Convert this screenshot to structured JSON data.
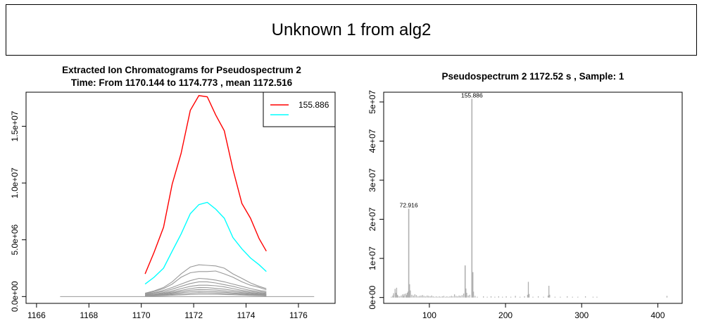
{
  "page_title": "Unknown 1 from alg2",
  "chart_data": [
    {
      "type": "line",
      "title": "Extracted Ion Chromatograms for  Pseudospectrum 2",
      "subtitle": "Time: From 1170.144 to 1174.773 , mean 1172.516",
      "xlabel": "",
      "ylabel": "",
      "xlim": [
        1165.6,
        1177.4
      ],
      "ylim": [
        -600000,
        18000000
      ],
      "x_ticks": [
        "1166",
        "1168",
        "1170",
        "1172",
        "1174",
        "1176"
      ],
      "y_ticks": [
        "0.0e+00",
        "5.0e+06",
        "1.0e+07",
        "1.5e+07"
      ],
      "legend": {
        "position": "top-right",
        "entries": [
          {
            "label": "155.886",
            "color": "#ff0000"
          },
          {
            "label": "",
            "color": "#00ffff"
          }
        ]
      },
      "x": [
        1170.144,
        1170.49,
        1170.85,
        1171.18,
        1171.52,
        1171.87,
        1172.2,
        1172.52,
        1172.84,
        1173.17,
        1173.5,
        1173.84,
        1174.17,
        1174.5,
        1174.773
      ],
      "series": [
        {
          "name": "155.886",
          "color": "#ff0000",
          "values": [
            2000000,
            3900000,
            6100000,
            9900000,
            12600000,
            16400000,
            17700000,
            17600000,
            16000000,
            14600000,
            11200000,
            8200000,
            6900000,
            5100000,
            4000000
          ]
        },
        {
          "name": "",
          "color": "#00ffff",
          "values": [
            1100000,
            1700000,
            2500000,
            4000000,
            5500000,
            7300000,
            8100000,
            8300000,
            7700000,
            6900000,
            5200000,
            4200000,
            3400000,
            2800000,
            2200000
          ]
        },
        {
          "color": "#999999",
          "values": [
            300000,
            500000,
            800000,
            1300000,
            2000000,
            2600000,
            2800000,
            2750000,
            2700000,
            2500000,
            2000000,
            1600000,
            1200000,
            900000,
            700000
          ]
        },
        {
          "color": "#999999",
          "values": [
            250000,
            450000,
            700000,
            1100000,
            1700000,
            2100000,
            2200000,
            2200000,
            2250000,
            2000000,
            1700000,
            1300000,
            1000000,
            800000,
            600000
          ]
        },
        {
          "color": "#999999",
          "values": [
            200000,
            350000,
            550000,
            800000,
            1100000,
            1400000,
            1600000,
            1550000,
            1450000,
            1300000,
            1100000,
            900000,
            700000,
            550000,
            450000
          ]
        },
        {
          "color": "#999999",
          "values": [
            150000,
            300000,
            450000,
            650000,
            900000,
            1150000,
            1300000,
            1300000,
            1200000,
            1050000,
            900000,
            700000,
            550000,
            450000,
            350000
          ]
        },
        {
          "color": "#999999",
          "values": [
            120000,
            220000,
            350000,
            500000,
            700000,
            900000,
            1000000,
            1000000,
            950000,
            850000,
            700000,
            550000,
            450000,
            350000,
            280000
          ]
        },
        {
          "color": "#999999",
          "values": [
            100000,
            180000,
            280000,
            400000,
            550000,
            700000,
            800000,
            780000,
            720000,
            650000,
            550000,
            450000,
            350000,
            280000,
            220000
          ]
        },
        {
          "color": "#999999",
          "values": [
            80000,
            140000,
            220000,
            320000,
            440000,
            560000,
            620000,
            610000,
            570000,
            500000,
            430000,
            350000,
            280000,
            220000,
            180000
          ]
        },
        {
          "color": "#999999",
          "values": [
            60000,
            110000,
            170000,
            250000,
            340000,
            420000,
            470000,
            460000,
            430000,
            380000,
            320000,
            260000,
            210000,
            170000,
            140000
          ]
        },
        {
          "color": "#999999",
          "values": [
            40000,
            80000,
            120000,
            180000,
            240000,
            300000,
            340000,
            330000,
            310000,
            280000,
            240000,
            200000,
            160000,
            130000,
            100000
          ]
        },
        {
          "color": "#999999",
          "values": [
            30000,
            50000,
            80000,
            110000,
            150000,
            190000,
            210000,
            210000,
            200000,
            180000,
            160000,
            130000,
            100000,
            80000,
            60000
          ]
        }
      ],
      "baseline": {
        "color": "#999999",
        "x": [
          1166.9,
          1176.6
        ],
        "value": 0
      }
    },
    {
      "type": "bar",
      "title": "Pseudospectrum 2 1172.52 s , Sample: 1",
      "xlabel": "",
      "ylabel": "",
      "xlim": [
        40,
        432
      ],
      "ylim": [
        -1500000,
        52500000
      ],
      "x_ticks": [
        "100",
        "200",
        "300",
        "400"
      ],
      "y_ticks": [
        "0e+00",
        "1e+07",
        "2e+07",
        "3e+07",
        "4e+07",
        "5e+07"
      ],
      "color": "#b0b0b0",
      "annotations": [
        {
          "label": "72.916",
          "x": 72.916,
          "y": 22700000
        },
        {
          "label": "155.886",
          "x": 155.886,
          "y": 50800000
        }
      ],
      "peaks": [
        {
          "x": 50,
          "y": 200000
        },
        {
          "x": 52,
          "y": 500000
        },
        {
          "x": 53,
          "y": 1100000
        },
        {
          "x": 55,
          "y": 2200000
        },
        {
          "x": 56,
          "y": 1200000
        },
        {
          "x": 57,
          "y": 2500000
        },
        {
          "x": 58,
          "y": 700000
        },
        {
          "x": 59,
          "y": 400000
        },
        {
          "x": 61,
          "y": 300000
        },
        {
          "x": 63,
          "y": 500000
        },
        {
          "x": 65,
          "y": 800000
        },
        {
          "x": 66,
          "y": 400000
        },
        {
          "x": 67,
          "y": 900000
        },
        {
          "x": 69,
          "y": 1000000
        },
        {
          "x": 70,
          "y": 600000
        },
        {
          "x": 71,
          "y": 1200000
        },
        {
          "x": 72,
          "y": 1500000
        },
        {
          "x": 72.916,
          "y": 22700000
        },
        {
          "x": 74,
          "y": 3400000
        },
        {
          "x": 75,
          "y": 1800000
        },
        {
          "x": 77,
          "y": 700000
        },
        {
          "x": 79,
          "y": 500000
        },
        {
          "x": 81,
          "y": 800000
        },
        {
          "x": 83,
          "y": 600000
        },
        {
          "x": 85,
          "y": 300000
        },
        {
          "x": 87,
          "y": 400000
        },
        {
          "x": 89,
          "y": 500000
        },
        {
          "x": 91,
          "y": 600000
        },
        {
          "x": 93,
          "y": 400000
        },
        {
          "x": 95,
          "y": 300000
        },
        {
          "x": 97,
          "y": 500000
        },
        {
          "x": 99,
          "y": 400000
        },
        {
          "x": 101,
          "y": 300000
        },
        {
          "x": 103,
          "y": 500000
        },
        {
          "x": 105,
          "y": 300000
        },
        {
          "x": 107,
          "y": 200000
        },
        {
          "x": 109,
          "y": 300000
        },
        {
          "x": 111,
          "y": 200000
        },
        {
          "x": 113,
          "y": 300000
        },
        {
          "x": 115,
          "y": 200000
        },
        {
          "x": 117,
          "y": 300000
        },
        {
          "x": 119,
          "y": 400000
        },
        {
          "x": 121,
          "y": 200000
        },
        {
          "x": 123,
          "y": 300000
        },
        {
          "x": 125,
          "y": 200000
        },
        {
          "x": 127,
          "y": 300000
        },
        {
          "x": 129,
          "y": 400000
        },
        {
          "x": 131,
          "y": 300000
        },
        {
          "x": 133,
          "y": 800000
        },
        {
          "x": 135,
          "y": 400000
        },
        {
          "x": 137,
          "y": 300000
        },
        {
          "x": 139,
          "y": 500000
        },
        {
          "x": 141,
          "y": 400000
        },
        {
          "x": 143,
          "y": 600000
        },
        {
          "x": 145,
          "y": 1000000
        },
        {
          "x": 147,
          "y": 8200000
        },
        {
          "x": 148,
          "y": 2300000
        },
        {
          "x": 149,
          "y": 1200000
        },
        {
          "x": 151,
          "y": 500000
        },
        {
          "x": 153,
          "y": 700000
        },
        {
          "x": 155.886,
          "y": 50800000
        },
        {
          "x": 157,
          "y": 6500000
        },
        {
          "x": 158,
          "y": 1500000
        },
        {
          "x": 160,
          "y": 400000
        },
        {
          "x": 163,
          "y": 200000
        },
        {
          "x": 171,
          "y": 300000
        },
        {
          "x": 176,
          "y": 200000
        },
        {
          "x": 181,
          "y": 300000
        },
        {
          "x": 186,
          "y": 200000
        },
        {
          "x": 191,
          "y": 300000
        },
        {
          "x": 196,
          "y": 200000
        },
        {
          "x": 201,
          "y": 300000
        },
        {
          "x": 207,
          "y": 200000
        },
        {
          "x": 213,
          "y": 400000
        },
        {
          "x": 219,
          "y": 200000
        },
        {
          "x": 225,
          "y": 300000
        },
        {
          "x": 229,
          "y": 700000
        },
        {
          "x": 230,
          "y": 4000000
        },
        {
          "x": 231,
          "y": 900000
        },
        {
          "x": 236,
          "y": 200000
        },
        {
          "x": 243,
          "y": 300000
        },
        {
          "x": 250,
          "y": 200000
        },
        {
          "x": 256,
          "y": 500000
        },
        {
          "x": 257,
          "y": 3000000
        },
        {
          "x": 258,
          "y": 700000
        },
        {
          "x": 265,
          "y": 200000
        },
        {
          "x": 272,
          "y": 200000
        },
        {
          "x": 281,
          "y": 300000
        },
        {
          "x": 288,
          "y": 200000
        },
        {
          "x": 295,
          "y": 200000
        },
        {
          "x": 305,
          "y": 300000
        },
        {
          "x": 315,
          "y": 200000
        },
        {
          "x": 320,
          "y": 200000
        },
        {
          "x": 412,
          "y": 400000
        }
      ]
    }
  ]
}
